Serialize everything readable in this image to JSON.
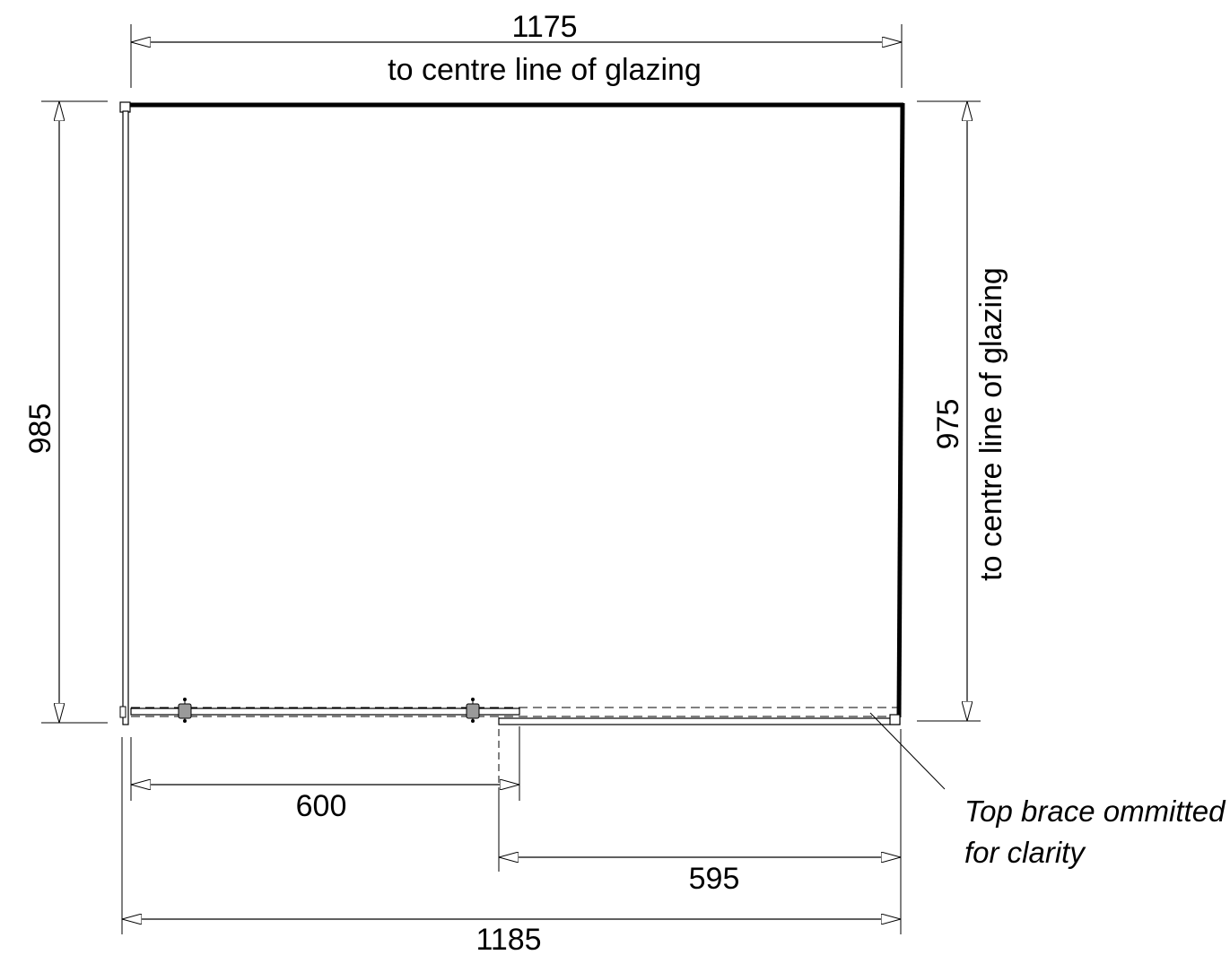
{
  "dimensions": {
    "top_width": {
      "value": "1175",
      "note": "to centre line of glazing"
    },
    "left_height": {
      "value": "985"
    },
    "right_height": {
      "value": "975",
      "note": "to centre line of glazing"
    },
    "door_width": {
      "value": "600"
    },
    "panel_width": {
      "value": "595"
    },
    "overall_width": {
      "value": "1185"
    }
  },
  "callout": {
    "line1": "Top brace ommitted",
    "line2": "for clarity"
  }
}
